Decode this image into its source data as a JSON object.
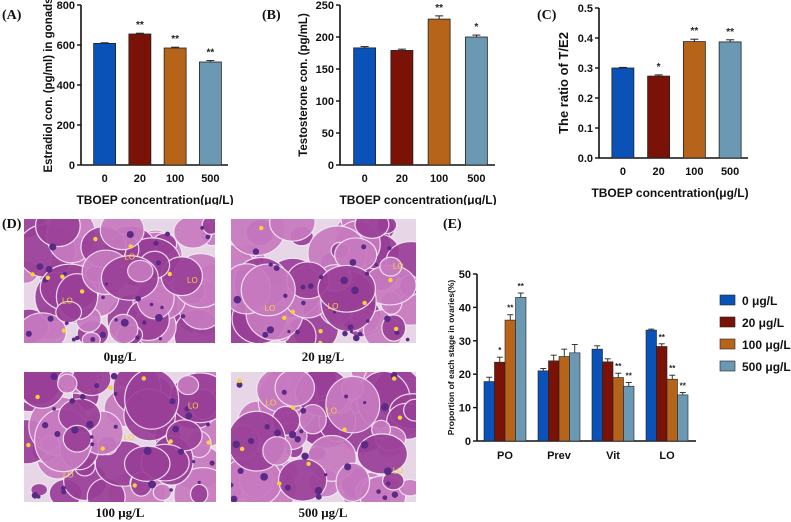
{
  "colors": {
    "c0": "#0a52b8",
    "c20": "#7a1208",
    "c100": "#b5641a",
    "c500": "#6b98b2",
    "tissue_bg": "#c77ac0",
    "tissue_dark": "#9a3f98",
    "tissue_light": "#e6d6e6",
    "annot": "#f5d23a"
  },
  "chart_data": [
    {
      "id": "A",
      "panel_label": "(A)",
      "type": "bar",
      "title": "",
      "xlabel": "TBOEP concentration(μg/L)",
      "ylabel": "Estradiol con. (pg/ml) in gonads",
      "categories": [
        "0",
        "20",
        "100",
        "500"
      ],
      "values": [
        608,
        655,
        585,
        515
      ],
      "errors": [
        3,
        4,
        4,
        7
      ],
      "significance": [
        "",
        "**",
        "**",
        "**"
      ],
      "ylim": [
        0,
        800
      ],
      "yticks": [
        0,
        200,
        400,
        600,
        800
      ],
      "grid": false
    },
    {
      "id": "B",
      "panel_label": "(B)",
      "type": "bar",
      "title": "",
      "xlabel": "",
      "ylabel": "Testosterone con. (pg/mL)",
      "categories": [
        "0",
        "20",
        "100",
        "500"
      ],
      "values": [
        183,
        179,
        228,
        200
      ],
      "errors": [
        2,
        2,
        5,
        3
      ],
      "significance": [
        "",
        "",
        "**",
        "*"
      ],
      "ylim": [
        0,
        250
      ],
      "yticks": [
        0,
        50,
        100,
        150,
        200,
        250
      ],
      "grid": false
    },
    {
      "id": "C",
      "panel_label": "(C)",
      "type": "bar",
      "title": "",
      "xlabel": "TBOEP concentration(μg/L)",
      "ylabel": "The ratio of T/E2",
      "categories": [
        "0",
        "20",
        "100",
        "500"
      ],
      "values": [
        0.3,
        0.273,
        0.388,
        0.387
      ],
      "errors": [
        0.002,
        0.004,
        0.008,
        0.007
      ],
      "significance": [
        "",
        "*",
        "**",
        "**"
      ],
      "ylim": [
        0,
        0.5
      ],
      "yticks": [
        "0.0",
        "0.1",
        "0.2",
        "0.3",
        "0.4",
        "0.5"
      ],
      "grid": false
    },
    {
      "id": "E",
      "panel_label": "(E)",
      "type": "bar",
      "title": "",
      "xlabel": "",
      "ylabel": "Proportion of each stage in ovaries(%)",
      "categories": [
        "PO",
        "Prev",
        "Vit",
        "LO"
      ],
      "series": [
        {
          "name": "0 μg/L",
          "values": [
            17.8,
            21.0,
            27.5,
            33.2
          ],
          "errors": [
            1.3,
            0.7,
            1.0,
            0.3
          ],
          "significance": [
            "",
            "",
            "",
            ""
          ]
        },
        {
          "name": "20 μg/L",
          "values": [
            23.6,
            24.0,
            23.7,
            28.3
          ],
          "errors": [
            1.5,
            1.7,
            0.9,
            0.8
          ],
          "significance": [
            "*",
            "",
            "",
            "**"
          ]
        },
        {
          "name": "100 μg/L",
          "values": [
            36.2,
            25.3,
            19.0,
            18.5
          ],
          "errors": [
            1.6,
            2.2,
            1.3,
            1.2
          ],
          "significance": [
            "**",
            "",
            "**",
            "**"
          ]
        },
        {
          "name": "500 μg/L",
          "values": [
            43.0,
            26.4,
            16.4,
            13.8
          ],
          "errors": [
            1.3,
            2.5,
            1.1,
            0.7
          ],
          "significance": [
            "**",
            "",
            "**",
            "**"
          ]
        }
      ],
      "ylim": [
        0,
        50
      ],
      "yticks": [
        0,
        10,
        20,
        30,
        40,
        50
      ],
      "legend": "right",
      "grid": false
    }
  ],
  "panel_d": {
    "panel_label": "(D)",
    "images": [
      {
        "caption": "0μg/L",
        "annotations": [
          "LO",
          "LO",
          "LO"
        ]
      },
      {
        "caption": "20 μg/L",
        "annotations": [
          "LO",
          "LO",
          "LO"
        ]
      },
      {
        "caption": "100 μg/L",
        "annotations": [
          "LO",
          "LO",
          "LO"
        ]
      },
      {
        "caption": "500 μg/L",
        "annotations": [
          "LO",
          "LO",
          "LO"
        ]
      }
    ]
  }
}
